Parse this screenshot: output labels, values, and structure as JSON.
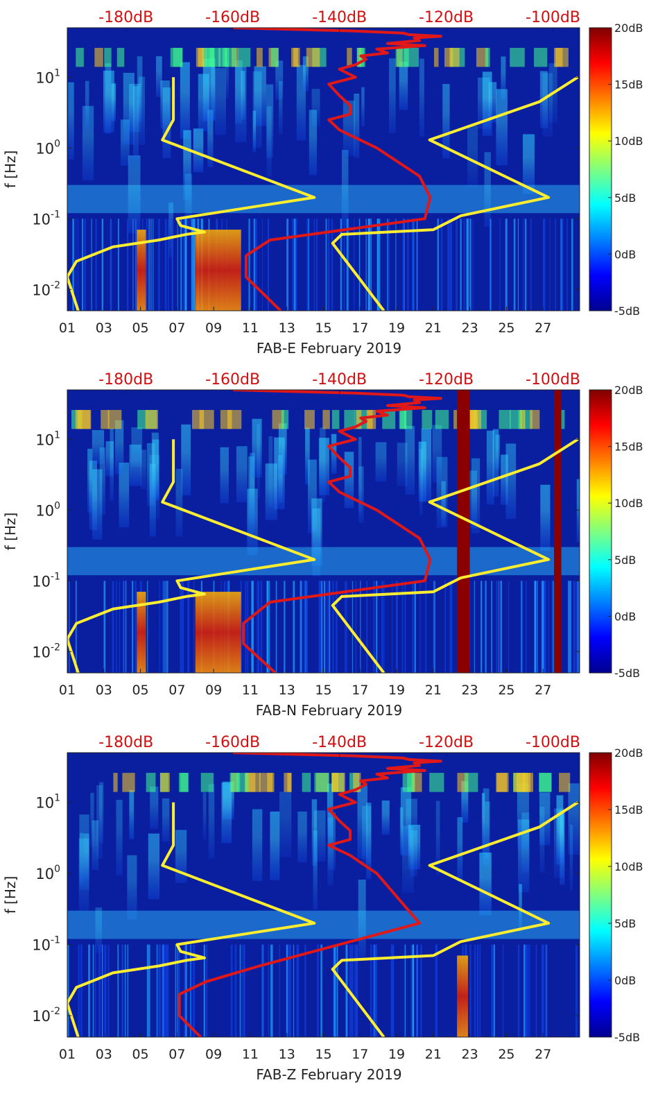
{
  "figure": {
    "month": "February 2019"
  },
  "colors": {
    "spectrogram_base": "#0a1ea0",
    "ref_curve": "#ffee30",
    "psd_curve": "#e01818",
    "top_label": "#d01010"
  },
  "chart_data": [
    {
      "type": "heatmap",
      "title": "",
      "xlabel": "FAB-E February 2019",
      "ylabel": "f [Hz]",
      "x_range_days": [
        1,
        29
      ],
      "y_range_hz": [
        0.005,
        50
      ],
      "y_scale": "log",
      "x_tick_labels": [
        "01",
        "03",
        "05",
        "07",
        "09",
        "11",
        "13",
        "15",
        "17",
        "19",
        "21",
        "23",
        "25",
        "27"
      ],
      "y_tick_labels": [
        "10^-2",
        "10^-1",
        "10^0",
        "10^1"
      ],
      "y_tick_values": [
        0.01,
        0.1,
        1,
        10
      ],
      "top_axis_labels": [
        "-180dB",
        "-160dB",
        "-140dB",
        "-120dB",
        "-100dB"
      ],
      "top_axis_values_db": [
        -180,
        -160,
        -140,
        -120,
        -100
      ],
      "top_axis_range_db": [
        -191,
        -95
      ],
      "colorbar": {
        "labels": [
          "20dB",
          "15dB",
          "10dB",
          "5dB",
          "0dB",
          "-5dB"
        ],
        "range_db": [
          -5,
          20
        ],
        "position": "right"
      },
      "hot_bands": [
        {
          "day_start": 4.8,
          "day_end": 5.3,
          "level_db": 15
        },
        {
          "day_start": 8.0,
          "day_end": 10.5,
          "level_db": 17
        }
      ],
      "series": [
        {
          "name": "reference noise model",
          "axis": "days",
          "x": [
            1.6,
            1.0,
            1.5,
            3.5,
            6.0,
            7.5,
            8.5,
            7.2,
            7.0,
            14.5,
            6.2,
            6.8,
            6.8
          ],
          "y": [
            0.005,
            0.015,
            0.025,
            0.04,
            0.05,
            0.06,
            0.065,
            0.08,
            0.1,
            0.2,
            1.3,
            2.5,
            10
          ]
        },
        {
          "name": "reference noise model",
          "axis": "days",
          "x": [
            18.3,
            15.5,
            16.0,
            21.0,
            22.5,
            27.3,
            20.8,
            26.8,
            28.9
          ],
          "y": [
            0.005,
            0.045,
            0.06,
            0.07,
            0.11,
            0.2,
            1.3,
            4.5,
            10
          ]
        },
        {
          "name": "average PSD",
          "axis": "db",
          "x": [
            -151,
            -157.5,
            -157.5,
            -153,
            -124,
            -123,
            -125,
            -133,
            -140,
            -142,
            -138,
            -138,
            -140,
            -142,
            -137,
            -140,
            -137,
            -135,
            -136,
            -131,
            -133,
            -124,
            -131,
            -125,
            -126,
            -121,
            -127,
            -128,
            -137,
            -160
          ],
          "y": [
            0.005,
            0.015,
            0.03,
            0.05,
            0.1,
            0.2,
            0.4,
            1.0,
            1.8,
            2.5,
            3.0,
            4.0,
            5.5,
            8.0,
            10,
            13,
            15,
            18,
            20,
            22,
            25,
            28,
            30,
            33,
            36,
            38,
            40,
            42,
            45,
            50
          ]
        }
      ]
    },
    {
      "type": "heatmap",
      "title": "",
      "xlabel": "FAB-N February 2019",
      "ylabel": "f [Hz]",
      "x_range_days": [
        1,
        29
      ],
      "y_range_hz": [
        0.005,
        50
      ],
      "y_scale": "log",
      "x_tick_labels": [
        "01",
        "03",
        "05",
        "07",
        "09",
        "11",
        "13",
        "15",
        "17",
        "19",
        "21",
        "23",
        "25",
        "27"
      ],
      "y_tick_labels": [
        "10^-2",
        "10^-1",
        "10^0",
        "10^1"
      ],
      "y_tick_values": [
        0.01,
        0.1,
        1,
        10
      ],
      "top_axis_labels": [
        "-180dB",
        "-160dB",
        "-140dB",
        "-120dB",
        "-100dB"
      ],
      "top_axis_values_db": [
        -180,
        -160,
        -140,
        -120,
        -100
      ],
      "top_axis_range_db": [
        -191,
        -95
      ],
      "colorbar": {
        "labels": [
          "20dB",
          "15dB",
          "10dB",
          "5dB",
          "0dB",
          "-5dB"
        ],
        "range_db": [
          -5,
          20
        ],
        "position": "right"
      },
      "hot_bands": [
        {
          "day_start": 4.8,
          "day_end": 5.3,
          "level_db": 15
        },
        {
          "day_start": 8.0,
          "day_end": 10.5,
          "level_db": 17
        },
        {
          "day_start": 22.3,
          "day_end": 23.0,
          "level_db": 20
        },
        {
          "day_start": 27.6,
          "day_end": 28.0,
          "level_db": 20
        }
      ],
      "series": [
        {
          "name": "reference noise model",
          "axis": "days",
          "x": [
            1.6,
            1.0,
            1.5,
            3.5,
            6.0,
            7.5,
            8.5,
            7.2,
            7.0,
            14.5,
            6.2,
            6.8,
            6.8
          ],
          "y": [
            0.005,
            0.015,
            0.025,
            0.04,
            0.05,
            0.06,
            0.065,
            0.08,
            0.1,
            0.2,
            1.3,
            2.5,
            10
          ]
        },
        {
          "name": "reference noise model",
          "axis": "days",
          "x": [
            18.3,
            15.5,
            16.0,
            21.0,
            22.5,
            27.3,
            20.8,
            26.8,
            28.9
          ],
          "y": [
            0.005,
            0.045,
            0.06,
            0.07,
            0.11,
            0.2,
            1.3,
            4.5,
            10
          ]
        },
        {
          "name": "average PSD",
          "axis": "db",
          "x": [
            -152,
            -158,
            -158,
            -153,
            -124,
            -123,
            -125,
            -133,
            -140,
            -142,
            -138,
            -138,
            -140,
            -142,
            -137,
            -140,
            -137,
            -135,
            -136,
            -131,
            -133,
            -124,
            -131,
            -125,
            -126,
            -121,
            -127,
            -128,
            -137,
            -160
          ],
          "y": [
            0.005,
            0.013,
            0.025,
            0.05,
            0.1,
            0.2,
            0.4,
            1.0,
            1.8,
            2.5,
            3.0,
            4.0,
            5.5,
            8.0,
            10,
            13,
            15,
            18,
            20,
            22,
            25,
            28,
            30,
            33,
            36,
            38,
            40,
            42,
            45,
            50
          ]
        }
      ]
    },
    {
      "type": "heatmap",
      "title": "",
      "xlabel": "FAB-Z February 2019",
      "ylabel": "f [Hz]",
      "x_range_days": [
        1,
        29
      ],
      "y_range_hz": [
        0.005,
        50
      ],
      "y_scale": "log",
      "x_tick_labels": [
        "01",
        "03",
        "05",
        "07",
        "09",
        "11",
        "13",
        "15",
        "17",
        "19",
        "21",
        "23",
        "25",
        "27"
      ],
      "y_tick_labels": [
        "10^-2",
        "10^-1",
        "10^0",
        "10^1"
      ],
      "y_tick_values": [
        0.01,
        0.1,
        1,
        10
      ],
      "top_axis_labels": [
        "-180dB",
        "-160dB",
        "-140dB",
        "-120dB",
        "-100dB"
      ],
      "top_axis_values_db": [
        -180,
        -160,
        -140,
        -120,
        -100
      ],
      "top_axis_range_db": [
        -191,
        -95
      ],
      "colorbar": {
        "labels": [
          "20dB",
          "15dB",
          "10dB",
          "5dB",
          "0dB",
          "-5dB"
        ],
        "range_db": [
          -5,
          20
        ],
        "position": "right"
      },
      "hot_bands": [
        {
          "day_start": 22.3,
          "day_end": 22.9,
          "level_db": 18
        }
      ],
      "series": [
        {
          "name": "reference noise model",
          "axis": "days",
          "x": [
            1.6,
            1.0,
            1.5,
            3.5,
            6.0,
            7.5,
            8.5,
            7.2,
            7.0,
            14.5,
            6.2,
            6.8,
            6.8
          ],
          "y": [
            0.005,
            0.015,
            0.025,
            0.04,
            0.05,
            0.06,
            0.065,
            0.08,
            0.1,
            0.2,
            1.3,
            2.5,
            10
          ]
        },
        {
          "name": "reference noise model",
          "axis": "days",
          "x": [
            18.3,
            15.5,
            16.0,
            21.0,
            22.5,
            27.3,
            20.8,
            26.8,
            28.9
          ],
          "y": [
            0.005,
            0.045,
            0.06,
            0.07,
            0.11,
            0.2,
            1.3,
            4.5,
            10
          ]
        },
        {
          "name": "average PSD",
          "axis": "db",
          "x": [
            -166,
            -170,
            -170,
            -165,
            -155,
            -140,
            -125,
            -133,
            -138,
            -142,
            -138,
            -138,
            -140,
            -142,
            -137,
            -140,
            -137,
            -135,
            -136,
            -131,
            -133,
            -124,
            -131,
            -125,
            -126,
            -121,
            -127,
            -128,
            -137,
            -160
          ],
          "y": [
            0.005,
            0.01,
            0.02,
            0.03,
            0.05,
            0.1,
            0.2,
            1.0,
            1.8,
            2.5,
            3.0,
            4.0,
            5.5,
            8.0,
            10,
            13,
            15,
            18,
            20,
            22,
            25,
            28,
            30,
            33,
            36,
            38,
            40,
            42,
            45,
            50
          ]
        }
      ]
    }
  ]
}
